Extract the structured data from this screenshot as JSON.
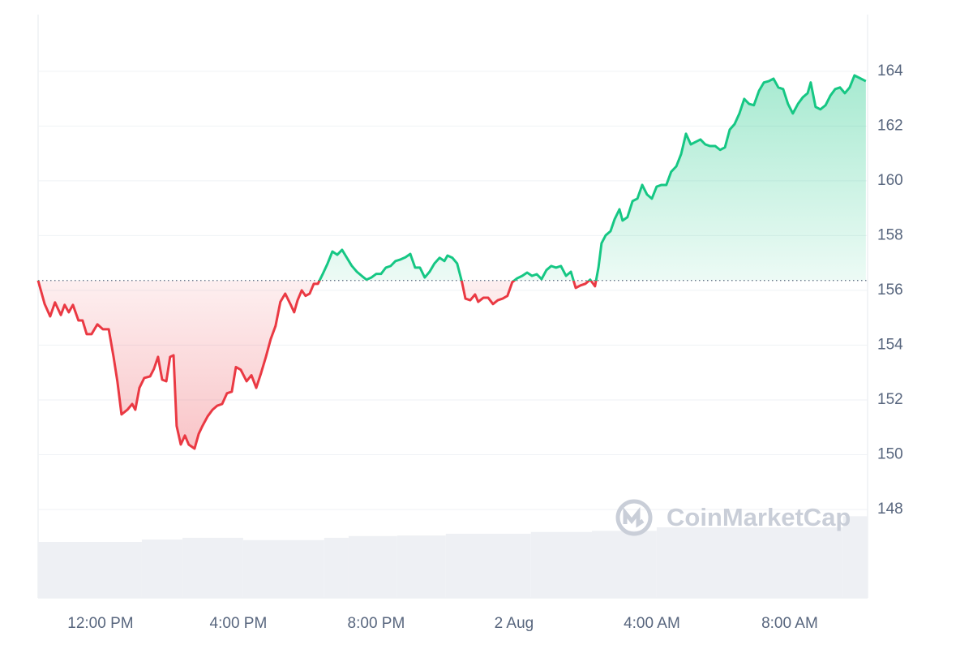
{
  "chart_data": {
    "type": "line",
    "x": [
      10.19,
      10.38,
      10.54,
      10.68,
      10.85,
      10.96,
      11.08,
      11.2,
      11.36,
      11.48,
      11.6,
      11.74,
      11.91,
      12.07,
      12.24,
      12.38,
      12.49,
      12.61,
      12.78,
      12.92,
      13.01,
      13.13,
      13.27,
      13.44,
      13.55,
      13.67,
      13.79,
      13.91,
      14.02,
      14.12,
      14.21,
      14.33,
      14.45,
      14.56,
      14.73,
      14.85,
      14.96,
      15.11,
      15.25,
      15.39,
      15.53,
      15.67,
      15.81,
      15.93,
      16.07,
      16.24,
      16.38,
      16.52,
      16.66,
      16.8,
      16.94,
      17.08,
      17.22,
      17.36,
      17.51,
      17.62,
      17.72,
      17.84,
      17.95,
      18.07,
      18.19,
      18.31,
      18.45,
      18.59,
      18.73,
      18.87,
      19.01,
      19.15,
      19.29,
      19.44,
      19.58,
      19.72,
      19.86,
      20.0,
      20.14,
      20.28,
      20.42,
      20.56,
      20.71,
      20.85,
      20.99,
      21.13,
      21.27,
      21.41,
      21.55,
      21.69,
      21.84,
      21.98,
      22.07,
      22.21,
      22.35,
      22.49,
      22.59,
      22.73,
      22.87,
      22.96,
      23.11,
      23.25,
      23.39,
      23.53,
      23.67,
      23.81,
      23.95,
      24.09,
      24.24,
      24.38,
      24.52,
      24.66,
      24.8,
      24.94,
      25.08,
      25.22,
      25.36,
      25.51,
      25.65,
      25.79,
      25.93,
      26.07,
      26.21,
      26.35,
      26.45,
      26.54,
      26.66,
      26.8,
      26.92,
      27.06,
      27.15,
      27.29,
      27.44,
      27.58,
      27.72,
      27.86,
      28.0,
      28.14,
      28.28,
      28.42,
      28.56,
      28.71,
      28.85,
      28.99,
      29.13,
      29.27,
      29.41,
      29.55,
      29.69,
      29.84,
      29.98,
      30.12,
      30.26,
      30.4,
      30.54,
      30.68,
      30.82,
      30.96,
      31.11,
      31.25,
      31.39,
      31.53,
      31.67,
      31.81,
      31.95,
      32.09,
      32.24,
      32.38,
      32.52,
      32.61,
      32.75,
      32.89,
      33.04,
      33.18,
      33.32,
      33.46,
      33.6,
      33.74,
      33.88,
      34.02,
      34.21
    ],
    "values": [
      156.36,
      155.5,
      155.05,
      155.56,
      155.1,
      155.47,
      155.2,
      155.47,
      154.9,
      154.9,
      154.4,
      154.4,
      154.76,
      154.58,
      154.58,
      153.57,
      152.68,
      151.47,
      151.64,
      151.85,
      151.64,
      152.44,
      152.8,
      152.86,
      153.13,
      153.57,
      152.74,
      152.68,
      153.57,
      153.63,
      151.05,
      150.37,
      150.7,
      150.37,
      150.22,
      150.76,
      151.05,
      151.4,
      151.64,
      151.79,
      151.85,
      152.24,
      152.3,
      153.2,
      153.1,
      152.68,
      152.9,
      152.44,
      152.98,
      153.57,
      154.22,
      154.7,
      155.58,
      155.88,
      155.5,
      155.2,
      155.64,
      156.0,
      155.8,
      155.88,
      156.24,
      156.24,
      156.6,
      156.98,
      157.42,
      157.3,
      157.48,
      157.19,
      156.9,
      156.68,
      156.53,
      156.39,
      156.47,
      156.6,
      156.6,
      156.83,
      156.89,
      157.07,
      157.13,
      157.21,
      157.33,
      156.83,
      156.83,
      156.47,
      156.68,
      156.98,
      157.19,
      157.07,
      157.27,
      157.19,
      156.98,
      156.3,
      155.7,
      155.64,
      155.85,
      155.58,
      155.73,
      155.73,
      155.5,
      155.64,
      155.7,
      155.8,
      156.3,
      156.44,
      156.53,
      156.65,
      156.53,
      156.59,
      156.41,
      156.74,
      156.89,
      156.83,
      156.89,
      156.53,
      156.68,
      156.09,
      156.18,
      156.24,
      156.39,
      156.15,
      156.83,
      157.72,
      158.01,
      158.16,
      158.6,
      158.96,
      158.55,
      158.67,
      159.26,
      159.35,
      159.85,
      159.5,
      159.35,
      159.79,
      159.85,
      159.85,
      160.33,
      160.53,
      160.98,
      161.72,
      161.33,
      161.42,
      161.51,
      161.33,
      161.27,
      161.27,
      161.13,
      161.22,
      161.87,
      162.07,
      162.46,
      162.99,
      162.81,
      162.76,
      163.29,
      163.59,
      163.64,
      163.73,
      163.41,
      163.35,
      162.81,
      162.46,
      162.81,
      163.05,
      163.2,
      163.59,
      162.7,
      162.61,
      162.76,
      163.11,
      163.35,
      163.41,
      163.2,
      163.41,
      163.85,
      163.76,
      163.64
    ],
    "baseline": 156.36,
    "up_color": "#16c784",
    "down_color": "#ea3943",
    "xlim": [
      10.19,
      34.26
    ],
    "xticks": [
      {
        "value": 12,
        "label": "12:00 PM"
      },
      {
        "value": 16,
        "label": "4:00 PM"
      },
      {
        "value": 20,
        "label": "8:00 PM"
      },
      {
        "value": 24,
        "label": "2 Aug"
      },
      {
        "value": 28,
        "label": "4:00 AM"
      },
      {
        "value": 32,
        "label": "8:00 AM"
      }
    ],
    "ylim": [
      144.77,
      166.07
    ],
    "yticks": [
      148,
      150,
      152,
      154,
      156,
      158,
      160,
      162,
      164
    ],
    "grid": true,
    "volume": {
      "color": "#eef0f4",
      "x": [
        10.19,
        13.2,
        14.38,
        16.14,
        18.49,
        19.2,
        20.61,
        22.02,
        24.49,
        26.26,
        28.14,
        33.55
      ],
      "values": [
        9.6,
        10.0,
        10.3,
        9.9,
        10.3,
        10.6,
        10.7,
        11.0,
        11.3,
        11.5,
        12.1,
        14.0
      ],
      "ylim": [
        0,
        100
      ]
    },
    "watermark": "CoinMarketCap"
  }
}
